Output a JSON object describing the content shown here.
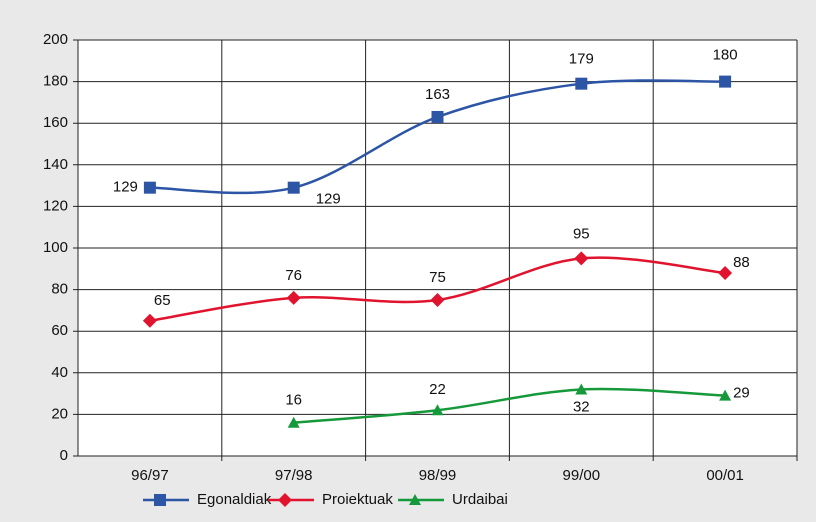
{
  "chart_data": {
    "type": "line",
    "categories": [
      "96/97",
      "97/98",
      "98/99",
      "99/00",
      "00/01"
    ],
    "series": [
      {
        "name": "Egonaldiak",
        "color": "#2d55a5",
        "marker": "square",
        "values": [
          129,
          129,
          163,
          179,
          180
        ]
      },
      {
        "name": "Proiektuak",
        "color": "#e0142e",
        "marker": "diamond",
        "values": [
          65,
          76,
          75,
          95,
          88
        ]
      },
      {
        "name": "Urdaibai",
        "color": "#16993a",
        "marker": "triangle",
        "values": [
          null,
          16,
          22,
          32,
          29
        ]
      }
    ],
    "ylim": [
      0,
      200
    ],
    "yticks": [
      0,
      20,
      40,
      60,
      80,
      100,
      120,
      140,
      160,
      180,
      200
    ],
    "grid": true,
    "legend": "bottom"
  }
}
